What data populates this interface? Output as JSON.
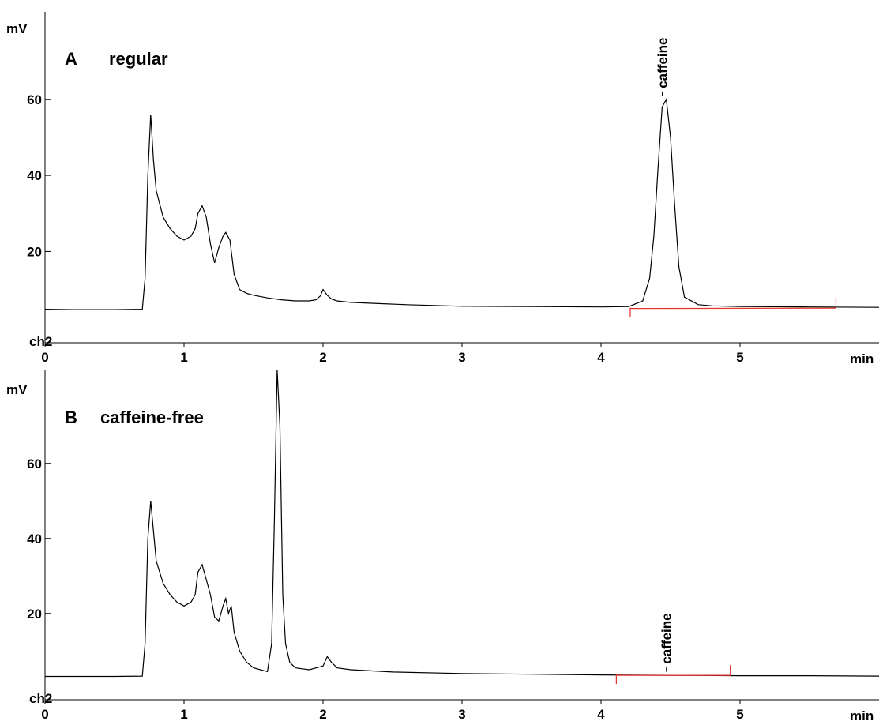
{
  "chart_data": [
    {
      "type": "line",
      "panel_letter": "A",
      "title": "regular",
      "ylabel": "mV",
      "xlabel": "min",
      "channel": "ch2",
      "xlim": [
        0,
        6
      ],
      "ylim": [
        -4,
        83
      ],
      "xticks": [
        "0",
        "1",
        "2",
        "3",
        "4",
        "5"
      ],
      "yticks": [
        "20",
        "40",
        "60"
      ],
      "baseline_color": "#e8332a",
      "series": [
        {
          "x": [
            0,
            0.2,
            0.5,
            0.7,
            0.72,
            0.74,
            0.76,
            0.78,
            0.8,
            0.85,
            0.9,
            0.95,
            1.0,
            1.05,
            1.08,
            1.1,
            1.13,
            1.16,
            1.19,
            1.22,
            1.25,
            1.28,
            1.3,
            1.33,
            1.36,
            1.4,
            1.45,
            1.5,
            1.6,
            1.7,
            1.8,
            1.9,
            1.95,
            1.98,
            2.0,
            2.03,
            2.06,
            2.1,
            2.2,
            2.4,
            2.6,
            2.8,
            3.0,
            3.5,
            4.0,
            4.2,
            4.3,
            4.35,
            4.38,
            4.41,
            4.44,
            4.47,
            4.5,
            4.53,
            4.56,
            4.6,
            4.7,
            4.8,
            5.0,
            5.5,
            6.0
          ],
          "y": [
            4.8,
            4.7,
            4.7,
            4.8,
            13,
            40,
            56,
            44,
            36,
            29,
            26,
            24,
            23,
            24,
            26,
            30,
            32,
            29,
            22,
            17,
            21,
            24,
            25,
            23,
            14,
            10,
            9,
            8.5,
            7.8,
            7.3,
            7.0,
            7.0,
            7.3,
            8.3,
            10,
            8.5,
            7.5,
            7.0,
            6.6,
            6.3,
            6.0,
            5.8,
            5.6,
            5.5,
            5.4,
            5.5,
            7,
            13,
            24,
            42,
            58,
            60,
            50,
            32,
            16,
            8,
            6,
            5.7,
            5.5,
            5.4,
            5.3
          ]
        }
      ],
      "peak_label": {
        "text": "caffeine",
        "x": 4.44,
        "y": 60
      },
      "baseline_segment": {
        "x": [
          4.21,
          5.69
        ],
        "y": [
          5.0,
          5.1
        ]
      }
    },
    {
      "type": "line",
      "panel_letter": "B",
      "title": "caffeine-free",
      "ylabel": "mV",
      "xlabel": "min",
      "channel": "ch2",
      "xlim": [
        0,
        6
      ],
      "ylim": [
        -3,
        85
      ],
      "xticks": [
        "0",
        "1",
        "2",
        "3",
        "4",
        "5"
      ],
      "yticks": [
        "20",
        "40",
        "60"
      ],
      "baseline_color": "#e8332a",
      "series": [
        {
          "x": [
            0,
            0.2,
            0.5,
            0.7,
            0.72,
            0.74,
            0.76,
            0.78,
            0.8,
            0.85,
            0.9,
            0.95,
            1.0,
            1.05,
            1.08,
            1.1,
            1.13,
            1.16,
            1.19,
            1.22,
            1.25,
            1.28,
            1.3,
            1.32,
            1.34,
            1.36,
            1.4,
            1.45,
            1.5,
            1.55,
            1.6,
            1.63,
            1.65,
            1.67,
            1.69,
            1.71,
            1.73,
            1.76,
            1.8,
            1.9,
            2.0,
            2.03,
            2.06,
            2.1,
            2.2,
            2.5,
            3.0,
            3.5,
            4.0,
            4.5,
            5.0,
            5.5,
            6.0
          ],
          "y": [
            3.2,
            3.2,
            3.2,
            3.3,
            12,
            40,
            50,
            42,
            34,
            28,
            25,
            23,
            22,
            23,
            25,
            31,
            33,
            29,
            25,
            19,
            18,
            22,
            24,
            20,
            22,
            15,
            10,
            7,
            5.5,
            5,
            4.5,
            12,
            45,
            85,
            70,
            25,
            12,
            7,
            5.5,
            5,
            6,
            8.5,
            7,
            5.5,
            5,
            4.4,
            4,
            3.8,
            3.6,
            3.5,
            3.4,
            3.4,
            3.3
          ]
        }
      ],
      "peak_label": {
        "text": "caffeine",
        "x": 4.47,
        "y": 3.6
      },
      "baseline_segment": {
        "x": [
          4.11,
          4.93
        ],
        "y": [
          3.5,
          3.5
        ]
      }
    }
  ]
}
